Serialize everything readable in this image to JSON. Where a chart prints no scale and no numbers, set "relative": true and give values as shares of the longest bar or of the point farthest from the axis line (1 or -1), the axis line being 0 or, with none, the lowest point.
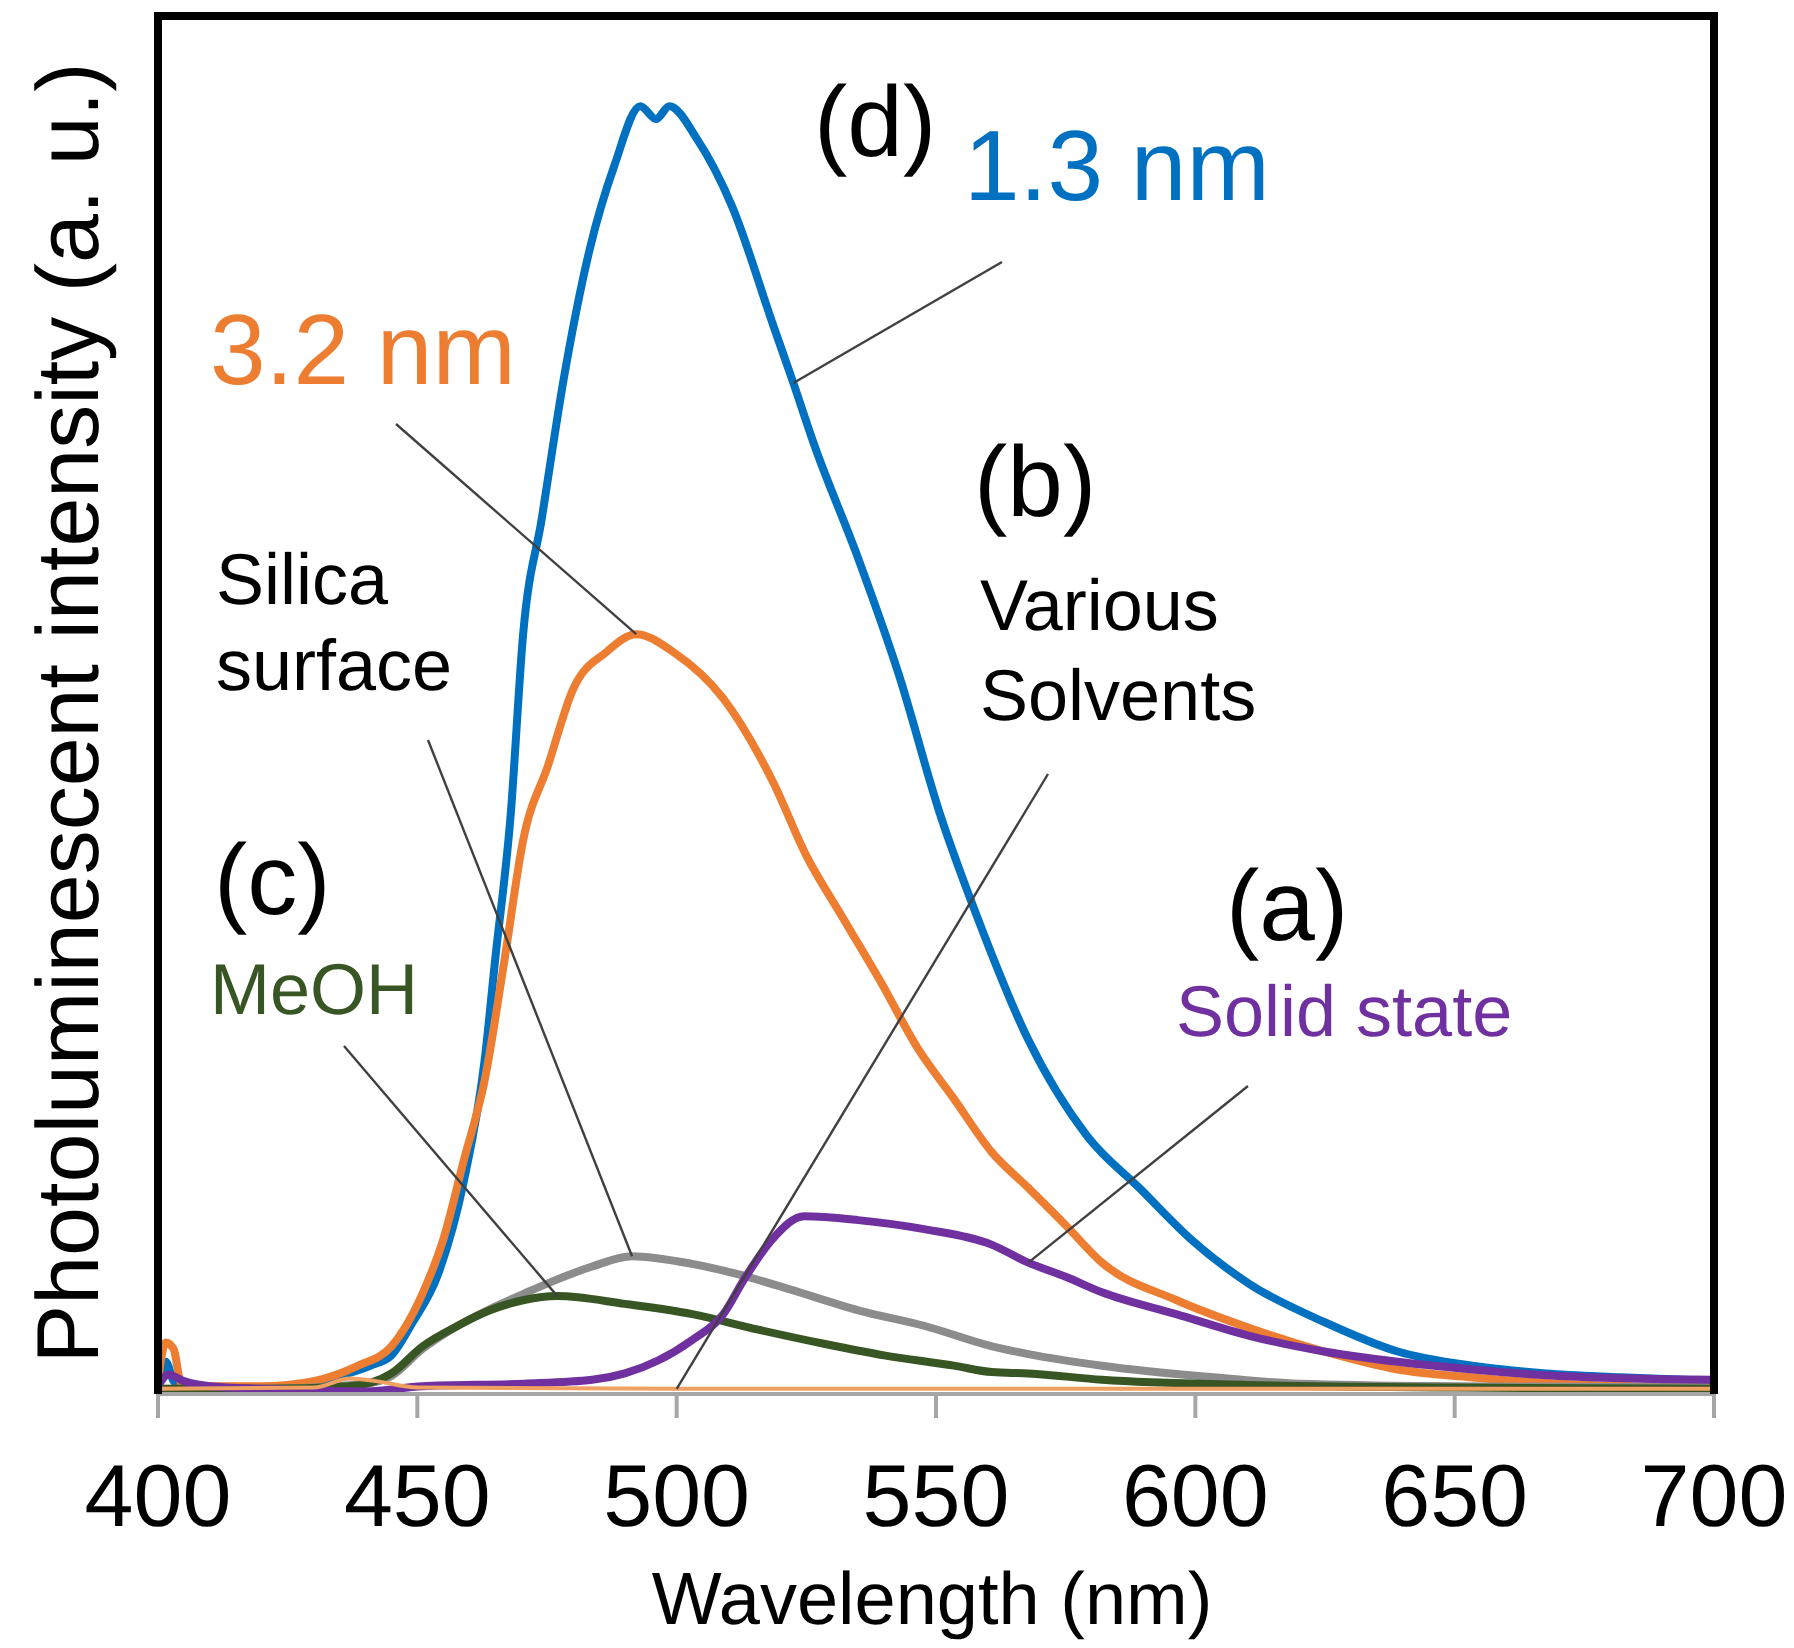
{
  "chart_data": {
    "type": "line",
    "xlabel": "Wavelength (nm)",
    "ylabel": "Photoluminescent intensity (a. u.)",
    "relative": true,
    "xlim": [
      400,
      700
    ],
    "xticks": [
      400,
      450,
      500,
      550,
      600,
      650,
      700
    ],
    "grid": false,
    "legend": false,
    "marker": "none",
    "line_style": "solid",
    "annotations": [
      "(d)",
      "(b)",
      "(c)",
      "(a)"
    ],
    "series": [
      {
        "name": "1.3 nm",
        "color": "#0070c0",
        "x": [
          400,
          401.5,
          403,
          405,
          420,
          435,
          441,
          445,
          449,
          454,
          459,
          463,
          465,
          468,
          470.4,
          474,
          478.3,
          483.3,
          488,
          493,
          496,
          498.6,
          504,
          510.7,
          518.6,
          522.5,
          526.7,
          534.8,
          542.8,
          550.8,
          557.7,
          567.8,
          579.2,
          589.2,
          599.2,
          610.6,
          624.8,
          639,
          653.4,
          667.6,
          682,
          700
        ],
        "values": [
          0.005,
          0.025,
          0.01,
          0.004,
          0.004,
          0.014,
          0.022,
          0.03,
          0.055,
          0.093,
          0.166,
          0.26,
          0.337,
          0.45,
          0.59,
          0.68,
          0.79,
          0.89,
          0.954,
          1.0,
          0.99,
          1.0,
          0.974,
          0.922,
          0.83,
          0.785,
          0.735,
          0.651,
          0.559,
          0.45,
          0.373,
          0.275,
          0.2,
          0.16,
          0.12,
          0.085,
          0.056,
          0.033,
          0.022,
          0.016,
          0.013,
          0.01
        ]
      },
      {
        "name": "3.2 nm",
        "color": "#ed7d31",
        "x": [
          400,
          401.5,
          403,
          404.5,
          410,
          420,
          430,
          438.6,
          445,
          451,
          455,
          459,
          463,
          466.8,
          470.4,
          475.2,
          480,
          486.4,
          492.2,
          499.4,
          509,
          518.6,
          525,
          532,
          539.2,
          546.4,
          553.5,
          560.7,
          567.8,
          575,
          582,
          596.3,
          610.6,
          624.8,
          639,
          653,
          670,
          700
        ],
        "values": [
          0.01,
          0.04,
          0.035,
          0.008,
          0.006,
          0.006,
          0.01,
          0.022,
          0.037,
          0.078,
          0.12,
          0.182,
          0.244,
          0.337,
          0.43,
          0.488,
          0.547,
          0.576,
          0.59,
          0.576,
          0.54,
          0.475,
          0.418,
          0.37,
          0.321,
          0.269,
          0.229,
          0.188,
          0.16,
          0.131,
          0.102,
          0.073,
          0.051,
          0.033,
          0.019,
          0.013,
          0.008,
          0.005
        ]
      },
      {
        "name": "Silica surface",
        "color": "#8c8c8c",
        "x": [
          400,
          420,
          440,
          445,
          451,
          457.8,
          464,
          470.6,
          477,
          483.7,
          491.4,
          503,
          511.8,
          522,
          535,
          547.7,
          560.8,
          567.8,
          582,
          603.5,
          620,
          650,
          700
        ],
        "values": [
          0.004,
          0.004,
          0.008,
          0.014,
          0.035,
          0.053,
          0.066,
          0.078,
          0.089,
          0.099,
          0.107,
          0.101,
          0.093,
          0.081,
          0.065,
          0.053,
          0.037,
          0.031,
          0.022,
          0.013,
          0.008,
          0.006,
          0.005
        ]
      },
      {
        "name": "MeOH",
        "color": "#375623",
        "x": [
          400,
          420,
          437,
          445,
          451,
          457.8,
          464,
          470.6,
          477,
          490,
          503,
          515.7,
          528.4,
          540,
          553.5,
          560.8,
          567.8,
          582,
          610,
          650,
          700
        ],
        "values": [
          0.004,
          0.004,
          0.006,
          0.016,
          0.037,
          0.053,
          0.065,
          0.073,
          0.076,
          0.07,
          0.062,
          0.05,
          0.039,
          0.03,
          0.022,
          0.017,
          0.016,
          0.011,
          0.007,
          0.005,
          0.004
        ]
      },
      {
        "name": "Solid state",
        "color": "#7030a0",
        "x": [
          400,
          402,
          405,
          410,
          420,
          440,
          451,
          470.6,
          483.7,
          490,
          496.4,
          503,
          509,
          513,
          518.4,
          524.6,
          535,
          547.7,
          560.7,
          567.8,
          575,
          582,
          596.3,
          610.6,
          624.8,
          639,
          653.4,
          670,
          700
        ],
        "values": [
          0.006,
          0.015,
          0.01,
          0.006,
          0.004,
          0.002,
          0.006,
          0.008,
          0.011,
          0.016,
          0.026,
          0.042,
          0.062,
          0.089,
          0.12,
          0.138,
          0.135,
          0.128,
          0.116,
          0.102,
          0.091,
          0.079,
          0.062,
          0.045,
          0.033,
          0.025,
          0.019,
          0.014,
          0.011
        ]
      },
      {
        "name": "Various Solvents",
        "color": "#f0a060",
        "x": [
          400,
          430,
          437,
          442,
          450,
          500,
          600,
          700
        ],
        "values": [
          0.004,
          0.005,
          0.012,
          0.01,
          0.005,
          0.004,
          0.004,
          0.004
        ]
      }
    ]
  }
}
